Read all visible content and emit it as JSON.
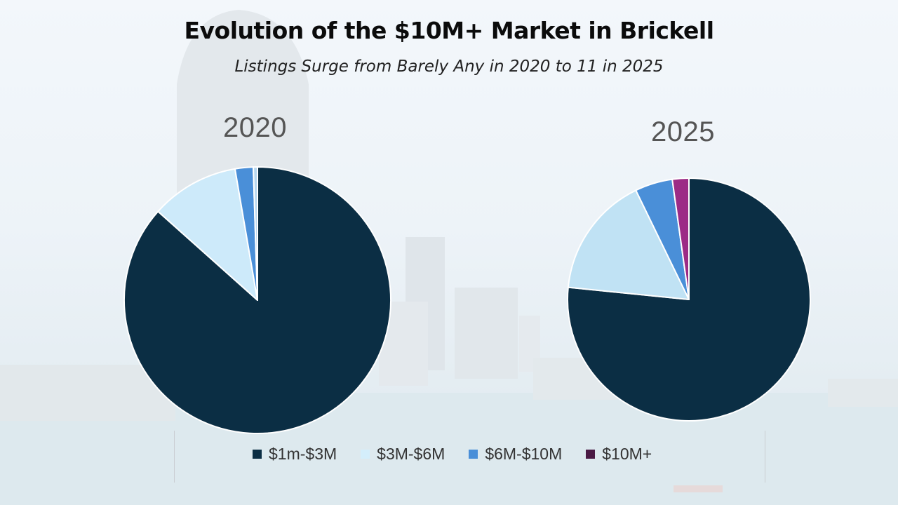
{
  "title": "Evolution of the $10M+ Market in Brickell",
  "subtitle": "Listings Surge from Barely Any in 2020 to 11 in 2025",
  "chart_data": [
    {
      "type": "pie",
      "title": "2020",
      "categories": [
        "$1m-$3M",
        "$3M-$6M",
        "$6M-$10M",
        "$10M+"
      ],
      "values": [
        86.6,
        10.7,
        2.2,
        0.5
      ],
      "colors": [
        "#0b2e44",
        "#cdeafa",
        "#4a8fd8",
        "#b8d8ef"
      ]
    },
    {
      "type": "pie",
      "title": "2025",
      "categories": [
        "$1m-$3M",
        "$3M-$6M",
        "$6M-$10M",
        "$10M+"
      ],
      "values": [
        76.6,
        16.2,
        5.0,
        2.2
      ],
      "colors": [
        "#0b2e44",
        "#c0e2f4",
        "#4a8fd8",
        "#9c2b86"
      ]
    }
  ],
  "legend": [
    {
      "label": "$1m-$3M",
      "color": "#0b2e44"
    },
    {
      "label": "$3M-$6M",
      "color": "#d4eefb"
    },
    {
      "label": "$6M-$10M",
      "color": "#4a8fd8"
    },
    {
      "label": "$10M+",
      "color": "#4a1a44"
    }
  ]
}
